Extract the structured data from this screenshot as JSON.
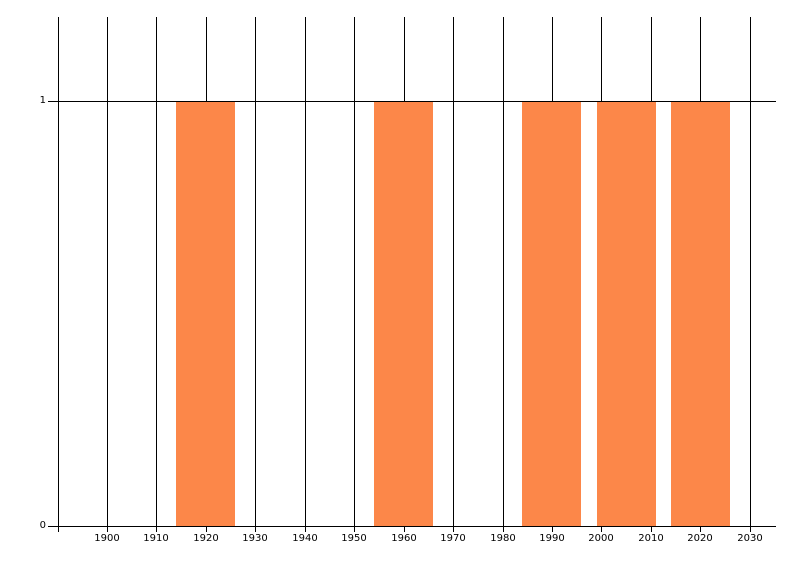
{
  "chart_data": {
    "type": "bar",
    "title": "",
    "xlabel": "",
    "ylabel": "",
    "x_axis": {
      "gridline_years": [
        1890,
        1900,
        1910,
        1920,
        1930,
        1940,
        1950,
        1960,
        1970,
        1980,
        1990,
        2000,
        2010,
        2020,
        2030
      ],
      "tick_labels": [
        {
          "year": 1900,
          "label": "1900"
        },
        {
          "year": 1910,
          "label": "1910"
        },
        {
          "year": 1920,
          "label": "1920"
        },
        {
          "year": 1930,
          "label": "1930"
        },
        {
          "year": 1940,
          "label": "1940"
        },
        {
          "year": 1950,
          "label": "1950"
        },
        {
          "year": 1960,
          "label": "1960"
        },
        {
          "year": 1970,
          "label": "1970"
        },
        {
          "year": 1980,
          "label": "1980"
        },
        {
          "year": 1990,
          "label": "1990"
        },
        {
          "year": 2000,
          "label": "2000"
        },
        {
          "year": 2010,
          "label": "2010"
        },
        {
          "year": 2020,
          "label": "2020"
        },
        {
          "year": 2030,
          "label": "2030"
        }
      ],
      "range_years": [
        1888,
        2035
      ]
    },
    "y_axis": {
      "ticks": [
        {
          "value": 0,
          "label": "0"
        },
        {
          "value": 1,
          "label": "1"
        }
      ],
      "gridline_values": [
        1
      ],
      "range": [
        0,
        1.2
      ]
    },
    "bars": [
      {
        "start_year": 1914,
        "end_year": 1926,
        "center_year": 1920,
        "value": 1
      },
      {
        "start_year": 1954,
        "end_year": 1966,
        "center_year": 1960,
        "value": 1
      },
      {
        "start_year": 1984,
        "end_year": 1996,
        "center_year": 1990,
        "value": 1
      },
      {
        "start_year": 1999,
        "end_year": 2011,
        "center_year": 2005,
        "value": 1
      },
      {
        "start_year": 2014,
        "end_year": 2026,
        "center_year": 2020,
        "value": 1
      }
    ],
    "grid": true,
    "legend": false,
    "colors": {
      "bar": "#fc8749",
      "grid": "#000000",
      "text": "#000000",
      "background": "#ffffff"
    }
  }
}
